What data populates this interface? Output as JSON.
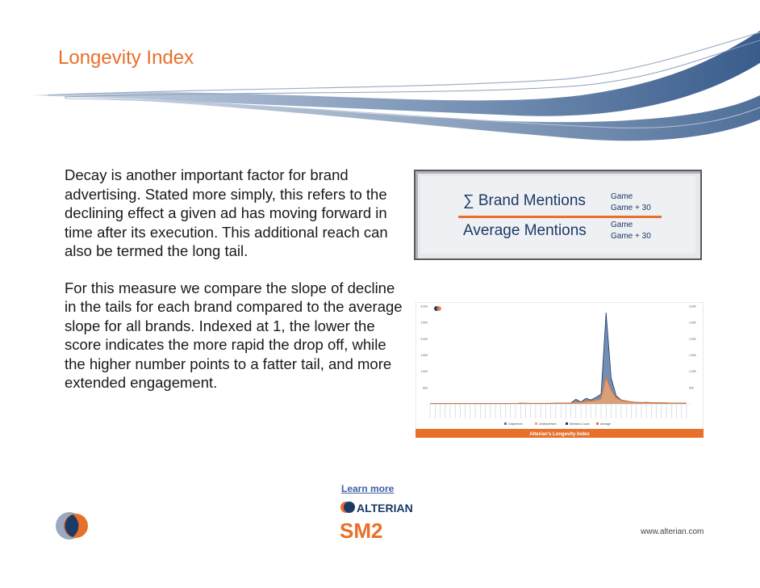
{
  "slide": {
    "title": "Longevity Index",
    "paragraphs": [
      "Decay is another important factor for brand advertising.  Stated more simply, this refers to the declining effect a given ad has moving forward in time after its execution. This additional reach can also be termed the long tail.",
      "For this measure we compare the slope of decline in the tails for each brand compared to the average slope for all brands.  Indexed at 1, the lower the score indicates the more rapid the drop off, while the higher number points to a fatter tail, and more extended engagement."
    ]
  },
  "formula": {
    "numerator": "∑ Brand Mentions",
    "denominator": "Average Mentions",
    "num_sub_top": "Game",
    "num_sub_bottom": "Game + 30",
    "den_sub_top": "Game",
    "den_sub_bottom": "Game + 30"
  },
  "footer": {
    "learn_more": "Learn more",
    "brand_name": "ALTERIAN",
    "product": "SM2",
    "url": "www.alterian.com"
  },
  "colors": {
    "accent": "#e8702a",
    "navy": "#1b3a66",
    "series_dark": "#5a7aa8",
    "series_orange": "#e8702a"
  },
  "chart_data": {
    "type": "area",
    "title": "Alterian's Longevity Index",
    "ylim": [
      0,
      3000
    ],
    "y_ticks": [
      "3,000",
      "2,500",
      "2,000",
      "1,500",
      "1,000",
      "500",
      "-"
    ],
    "legend": [
      "Outperform",
      "Underperform",
      "Mentions Count",
      "Average"
    ],
    "legend_position": "bottom",
    "series": [
      {
        "name": "Outperform",
        "values": [
          0,
          0,
          0,
          0,
          0,
          0,
          0,
          0,
          0,
          0,
          0,
          0,
          0,
          0,
          0,
          0,
          0,
          0,
          0,
          0,
          0,
          0,
          0,
          0,
          0,
          0,
          0,
          0,
          0,
          0,
          0,
          0,
          0,
          0,
          0,
          0,
          0,
          0,
          0,
          0,
          0,
          0,
          0,
          0,
          0,
          0,
          0,
          0,
          0,
          0,
          0,
          0
        ]
      },
      {
        "name": "Mentions Count",
        "values": [
          10,
          12,
          10,
          8,
          10,
          9,
          10,
          12,
          10,
          9,
          8,
          10,
          11,
          10,
          9,
          12,
          14,
          12,
          20,
          18,
          15,
          14,
          12,
          14,
          16,
          20,
          25,
          20,
          30,
          140,
          60,
          170,
          120,
          200,
          300,
          2800,
          800,
          250,
          120,
          90,
          60,
          50,
          40,
          45,
          40,
          35,
          30,
          30,
          25,
          25,
          20,
          20
        ]
      },
      {
        "name": "Average",
        "values": [
          10,
          10,
          10,
          10,
          10,
          10,
          10,
          10,
          10,
          10,
          10,
          10,
          10,
          10,
          10,
          10,
          12,
          12,
          14,
          14,
          14,
          14,
          14,
          16,
          18,
          20,
          22,
          22,
          25,
          60,
          50,
          80,
          90,
          110,
          160,
          820,
          420,
          180,
          110,
          80,
          55,
          45,
          40,
          40,
          38,
          32,
          30,
          28,
          25,
          24,
          20,
          20
        ]
      }
    ]
  }
}
